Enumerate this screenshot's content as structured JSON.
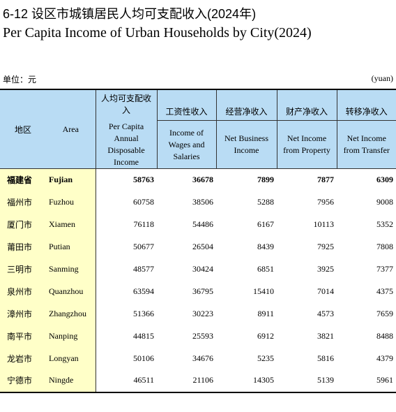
{
  "header": {
    "title_cn": "6-12  设区市城镇居民人均可支配收入(2024年)",
    "title_en": "Per Capita Income of Urban Households by City(2024)"
  },
  "unit": {
    "left": "单位：元",
    "right": "(yuan)"
  },
  "table": {
    "area_cn": "地区",
    "area_en": "Area",
    "columns": [
      {
        "cn": "人均可支配收入",
        "en": "Per Capita Annual Disposable Income"
      },
      {
        "cn": "工资性收入",
        "en": "Income of Wages and Salaries"
      },
      {
        "cn": "经营净收入",
        "en": "Net Business Income"
      },
      {
        "cn": "财产净收入",
        "en": "Net Income from Property"
      },
      {
        "cn": "转移净收入",
        "en": "Net Income from Transfer"
      }
    ],
    "rows": [
      [
        "福建省",
        "Fujian",
        58763,
        36678,
        7899,
        7877,
        6309
      ],
      [
        "福州市",
        "Fuzhou",
        60758,
        38506,
        5288,
        7956,
        9008
      ],
      [
        "厦门市",
        "Xiamen",
        76118,
        54486,
        6167,
        10113,
        5352
      ],
      [
        "莆田市",
        "Putian",
        50677,
        26504,
        8439,
        7925,
        7808
      ],
      [
        "三明市",
        "Sanming",
        48577,
        30424,
        6851,
        3925,
        7377
      ],
      [
        "泉州市",
        "Quanzhou",
        63594,
        36795,
        15410,
        7014,
        4375
      ],
      [
        "漳州市",
        "Zhangzhou",
        51366,
        30223,
        8911,
        4573,
        7659
      ],
      [
        "南平市",
        "Nanping",
        44815,
        25593,
        6912,
        3821,
        8488
      ],
      [
        "龙岩市",
        "Longyan",
        50106,
        34676,
        5235,
        5816,
        4379
      ],
      [
        "宁德市",
        "Ningde",
        46511,
        21106,
        14305,
        5139,
        5961
      ]
    ]
  }
}
